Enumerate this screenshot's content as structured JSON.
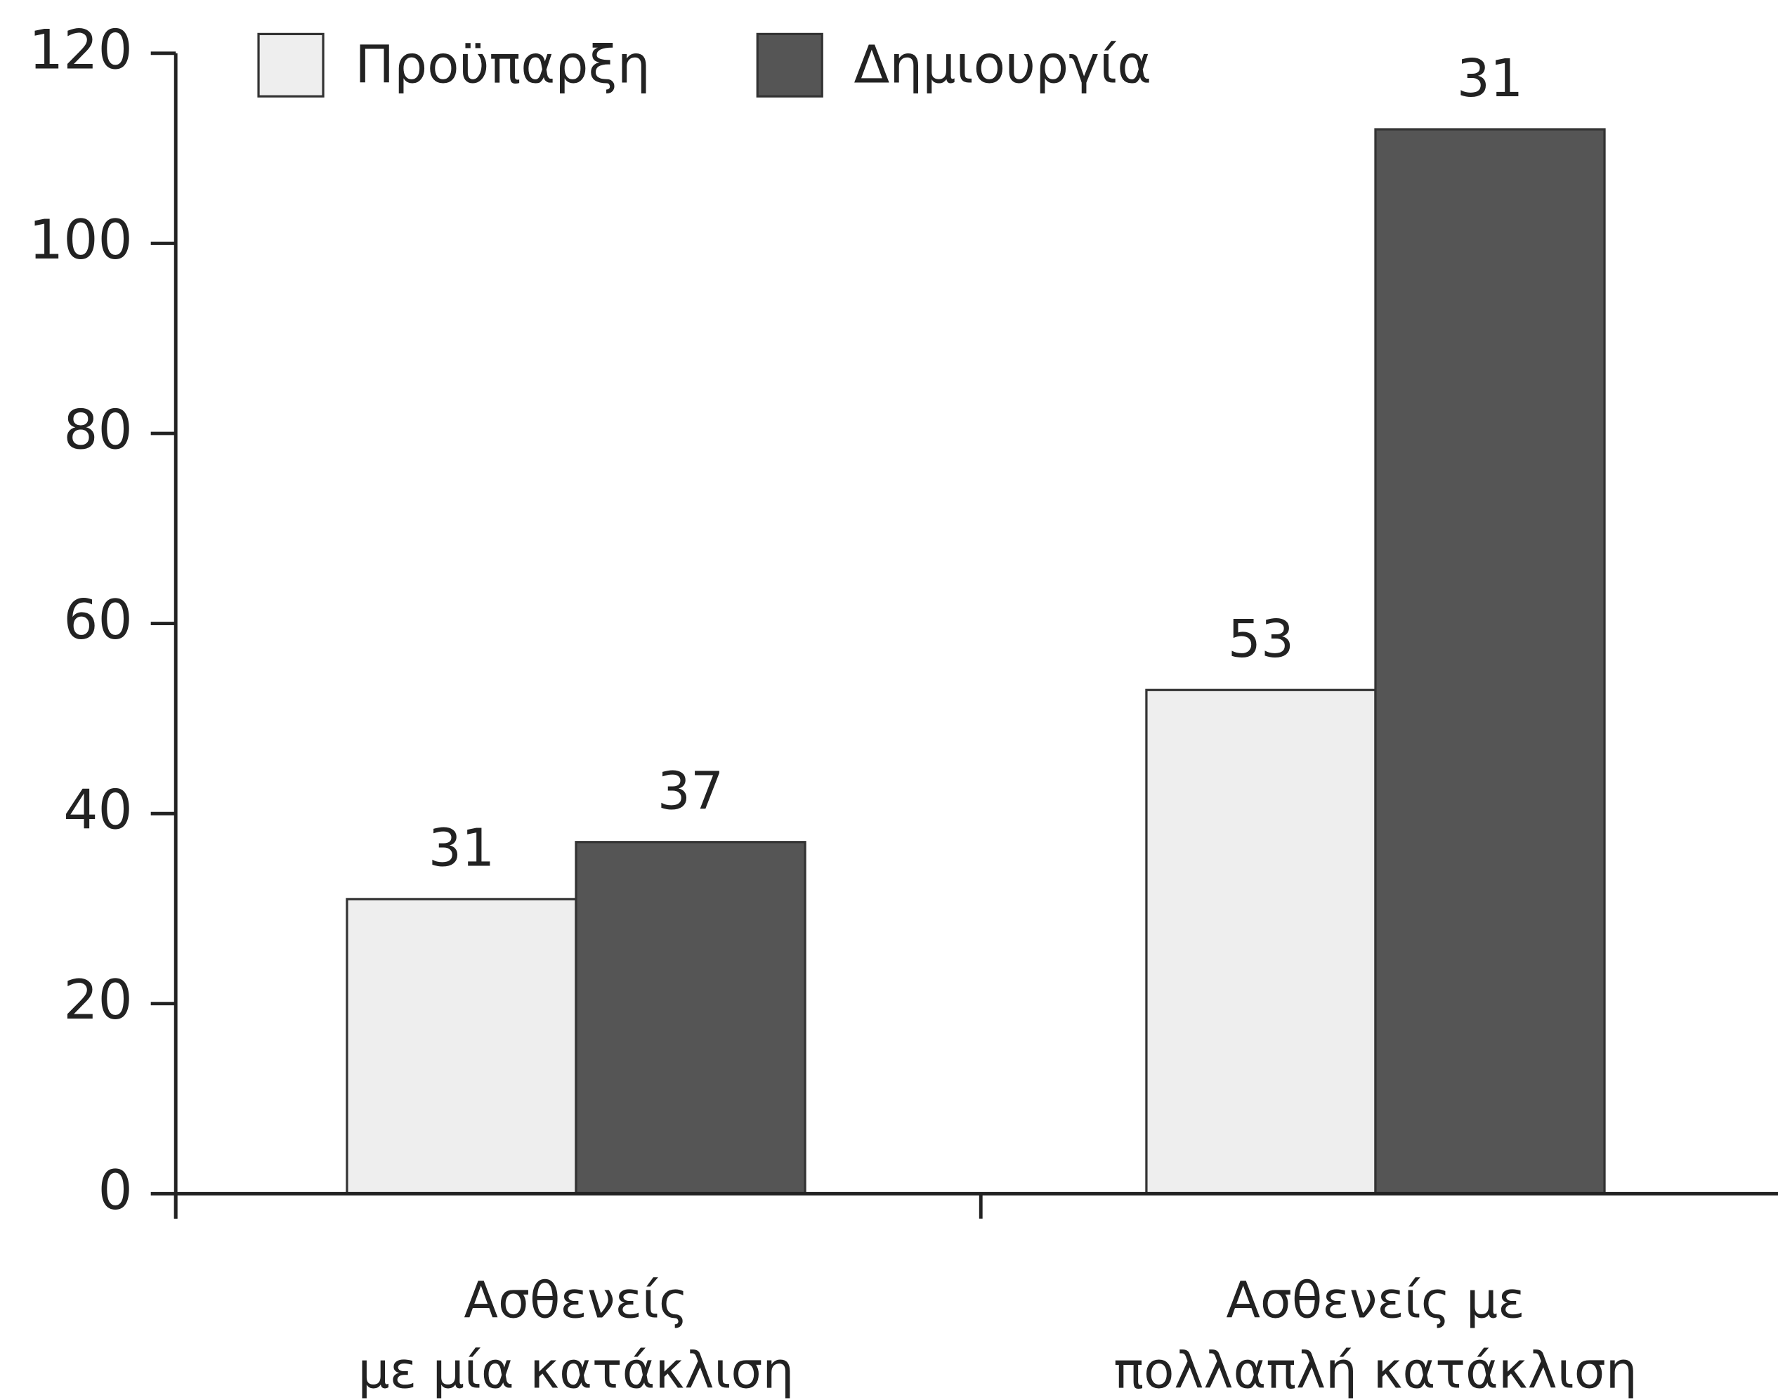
{
  "chart_data": {
    "type": "bar",
    "categories": [
      [
        "Ασθενείς",
        "με μία κατάκλιση"
      ],
      [
        "Ασθενείς με",
        "πολλαπλή κατάκλιση"
      ]
    ],
    "series": [
      {
        "name": "Προϋπαρξη",
        "color": "#eeeeee",
        "values": [
          31,
          53
        ]
      },
      {
        "name": "Δημιουργία",
        "color": "#555555",
        "values": [
          37,
          112
        ]
      }
    ],
    "annotations": [
      "31"
    ],
    "ylim": [
      0,
      120
    ],
    "yticks": [
      0,
      20,
      40,
      60,
      80,
      100,
      120
    ],
    "grid": false,
    "legend": "top"
  }
}
